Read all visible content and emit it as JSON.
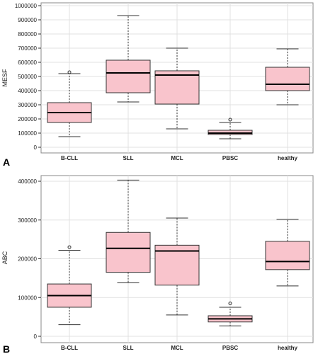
{
  "colors": {
    "box_fill": "#f9c4cc",
    "box_stroke": "#333333",
    "grid": "#e0e0e0",
    "frame": "#888888"
  },
  "chart_data": [
    {
      "type": "box",
      "panel": "A",
      "ylabel": "MESF",
      "ylim": [
        0,
        1000000
      ],
      "yticks": [
        0,
        100000,
        200000,
        300000,
        400000,
        500000,
        600000,
        700000,
        800000,
        900000,
        1000000
      ],
      "ytick_labels": [
        "0",
        "100000",
        "200000",
        "300000",
        "400000",
        "500000",
        "600000",
        "700000",
        "800000",
        "900000",
        "1000000"
      ],
      "grid": true,
      "categories": [
        "B-CLL",
        "SLL",
        "MCL",
        "PBSC",
        "healthy"
      ],
      "boxes": [
        {
          "min": 75000,
          "q1": 175000,
          "median": 245000,
          "q3": 315000,
          "max": 520000,
          "outliers": [
            530000
          ]
        },
        {
          "min": 320000,
          "q1": 385000,
          "median": 525000,
          "q3": 615000,
          "max": 930000,
          "outliers": []
        },
        {
          "min": 130000,
          "q1": 305000,
          "median": 510000,
          "q3": 540000,
          "max": 700000,
          "outliers": []
        },
        {
          "min": 60000,
          "q1": 90000,
          "median": 100000,
          "q3": 120000,
          "max": 175000,
          "outliers": [
            195000
          ]
        },
        {
          "min": 300000,
          "q1": 400000,
          "median": 445000,
          "q3": 565000,
          "max": 695000,
          "outliers": []
        }
      ]
    },
    {
      "type": "box",
      "panel": "B",
      "ylabel": "ABC",
      "ylim": [
        0,
        400000
      ],
      "yticks": [
        0,
        100000,
        200000,
        300000,
        400000
      ],
      "ytick_labels": [
        "0",
        "100000",
        "200000",
        "300000",
        "400000"
      ],
      "grid": true,
      "categories": [
        "B-CLL",
        "SLL",
        "MCL",
        "PBSC",
        "healthy"
      ],
      "boxes": [
        {
          "min": 30000,
          "q1": 75000,
          "median": 105000,
          "q3": 135000,
          "max": 222000,
          "outliers": [
            230000
          ]
        },
        {
          "min": 138000,
          "q1": 165000,
          "median": 227000,
          "q3": 268000,
          "max": 403000,
          "outliers": []
        },
        {
          "min": 55000,
          "q1": 132000,
          "median": 220000,
          "q3": 235000,
          "max": 305000,
          "outliers": []
        },
        {
          "min": 27000,
          "q1": 37000,
          "median": 45000,
          "q3": 53000,
          "max": 75000,
          "outliers": [
            85000
          ]
        },
        {
          "min": 130000,
          "q1": 172000,
          "median": 193000,
          "q3": 245000,
          "max": 302000,
          "outliers": []
        }
      ]
    }
  ]
}
